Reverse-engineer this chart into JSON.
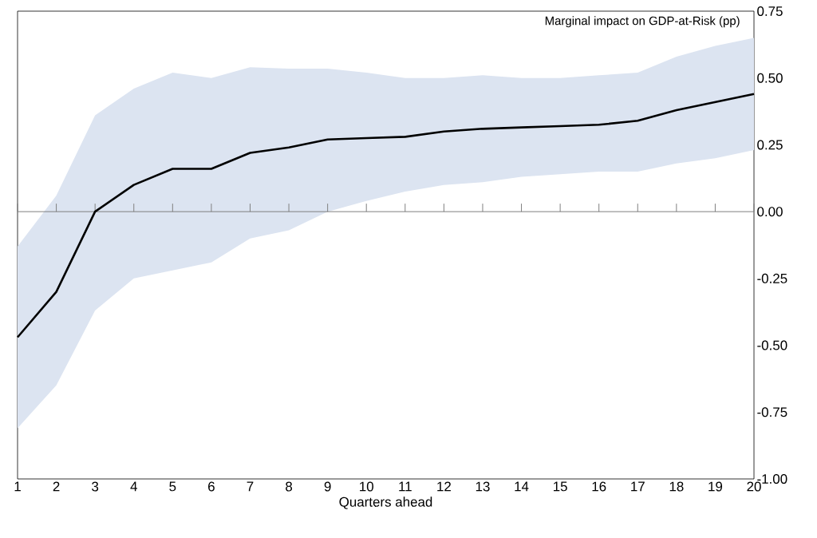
{
  "chart_data": {
    "type": "line",
    "title": "Marginal impact on GDP-at-Risk (pp)",
    "xlabel": "Quarters ahead",
    "x": [
      1,
      2,
      3,
      4,
      5,
      6,
      7,
      8,
      9,
      10,
      11,
      12,
      13,
      14,
      15,
      16,
      17,
      18,
      19,
      20
    ],
    "series": [
      {
        "color": "#000000",
        "values": [
          -0.47,
          -0.3,
          0.0,
          0.1,
          0.16,
          0.16,
          0.22,
          0.24,
          0.27,
          0.275,
          0.28,
          0.3,
          0.31,
          0.315,
          0.32,
          0.325,
          0.34,
          0.38,
          0.41,
          0.44
        ],
        "lower": [
          -0.81,
          -0.65,
          -0.37,
          -0.25,
          -0.22,
          -0.19,
          -0.1,
          -0.07,
          0.0,
          0.04,
          0.075,
          0.1,
          0.11,
          0.13,
          0.14,
          0.15,
          0.15,
          0.18,
          0.2,
          0.23
        ],
        "upper": [
          -0.13,
          0.06,
          0.36,
          0.46,
          0.52,
          0.5,
          0.54,
          0.535,
          0.535,
          0.52,
          0.5,
          0.5,
          0.51,
          0.5,
          0.5,
          0.51,
          0.52,
          0.58,
          0.62,
          0.65
        ]
      }
    ],
    "xlim": [
      1,
      20
    ],
    "xticks": [
      1,
      2,
      3,
      4,
      5,
      6,
      7,
      8,
      9,
      10,
      11,
      12,
      13,
      14,
      15,
      16,
      17,
      18,
      19,
      20
    ],
    "ylim": [
      -1.0,
      0.75
    ],
    "yticks": [
      {
        "value": -1.0,
        "label": "-1.00"
      },
      {
        "value": -0.75,
        "label": "-0.75"
      },
      {
        "value": -0.5,
        "label": "-0.50"
      },
      {
        "value": -0.25,
        "label": "-0.25"
      },
      {
        "value": 0,
        "label": "0.00"
      },
      {
        "value": 0.25,
        "label": "0.25"
      },
      {
        "value": 0.5,
        "label": "0.50"
      },
      {
        "value": 0.75,
        "label": "0.75"
      }
    ],
    "ref_lines": [
      {
        "axis": "y",
        "value": 0,
        "color": "#808080"
      }
    ],
    "grid": false,
    "marker": "none",
    "line_style": "solid"
  }
}
